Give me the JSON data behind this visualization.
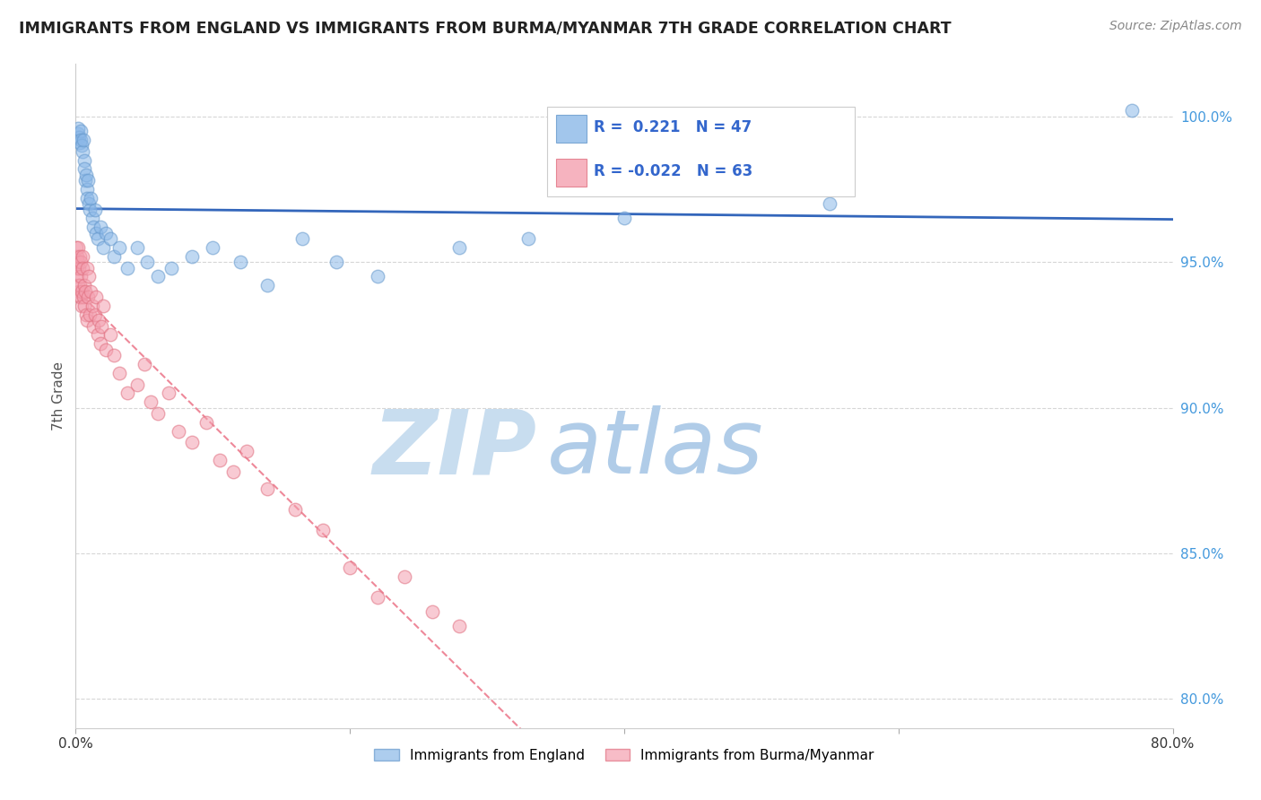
{
  "title": "IMMIGRANTS FROM ENGLAND VS IMMIGRANTS FROM BURMA/MYANMAR 7TH GRADE CORRELATION CHART",
  "source": "Source: ZipAtlas.com",
  "ylabel": "7th Grade",
  "yticks": [
    80.0,
    85.0,
    90.0,
    95.0,
    100.0
  ],
  "ytick_labels": [
    "80.0%",
    "85.0%",
    "90.0%",
    "95.0%",
    "100.0%"
  ],
  "xtick_vals": [
    0.0,
    20.0,
    40.0,
    60.0,
    80.0
  ],
  "xtick_labels": [
    "0.0%",
    "",
    "",
    "",
    "80.0%"
  ],
  "xlim": [
    0.0,
    80.0
  ],
  "ylim": [
    79.0,
    101.8
  ],
  "legend_england": "Immigrants from England",
  "legend_burma": "Immigrants from Burma/Myanmar",
  "R_england": 0.221,
  "N_england": 47,
  "R_burma": -0.022,
  "N_burma": 63,
  "england_color": "#8BB8E8",
  "burma_color": "#F4A0B0",
  "england_edge_color": "#6699CC",
  "burma_edge_color": "#E07080",
  "england_line_color": "#3366BB",
  "burma_line_color": "#EE8899",
  "background_color": "#FFFFFF",
  "watermark_zip": "ZIP",
  "watermark_atlas": "atlas",
  "watermark_color_zip": "#C8DDEF",
  "watermark_color_atlas": "#B0CCE8",
  "england_x": [
    0.15,
    0.2,
    0.25,
    0.3,
    0.35,
    0.4,
    0.45,
    0.5,
    0.55,
    0.6,
    0.65,
    0.7,
    0.75,
    0.8,
    0.85,
    0.9,
    0.95,
    1.0,
    1.1,
    1.2,
    1.3,
    1.4,
    1.5,
    1.6,
    1.8,
    2.0,
    2.2,
    2.5,
    2.8,
    3.2,
    3.8,
    4.5,
    5.2,
    6.0,
    7.0,
    8.5,
    10.0,
    12.0,
    14.0,
    16.5,
    19.0,
    22.0,
    28.0,
    33.0,
    40.0,
    55.0,
    77.0
  ],
  "england_y": [
    99.4,
    99.6,
    99.3,
    99.1,
    99.5,
    99.2,
    99.0,
    98.8,
    99.2,
    98.5,
    98.2,
    97.8,
    98.0,
    97.5,
    97.2,
    97.8,
    97.0,
    96.8,
    97.2,
    96.5,
    96.2,
    96.8,
    96.0,
    95.8,
    96.2,
    95.5,
    96.0,
    95.8,
    95.2,
    95.5,
    94.8,
    95.5,
    95.0,
    94.5,
    94.8,
    95.2,
    95.5,
    95.0,
    94.2,
    95.8,
    95.0,
    94.5,
    95.5,
    95.8,
    96.5,
    97.0,
    100.2
  ],
  "burma_x": [
    0.05,
    0.08,
    0.1,
    0.12,
    0.15,
    0.18,
    0.2,
    0.22,
    0.25,
    0.28,
    0.3,
    0.32,
    0.35,
    0.38,
    0.4,
    0.42,
    0.45,
    0.48,
    0.5,
    0.55,
    0.6,
    0.65,
    0.7,
    0.75,
    0.8,
    0.85,
    0.9,
    0.95,
    1.0,
    1.1,
    1.2,
    1.3,
    1.4,
    1.5,
    1.6,
    1.7,
    1.8,
    1.9,
    2.0,
    2.2,
    2.5,
    2.8,
    3.2,
    3.8,
    4.5,
    5.0,
    5.5,
    6.0,
    6.8,
    7.5,
    8.5,
    9.5,
    10.5,
    11.5,
    12.5,
    14.0,
    16.0,
    18.0,
    20.0,
    22.0,
    24.0,
    26.0,
    28.0
  ],
  "burma_y": [
    95.5,
    94.8,
    95.2,
    94.5,
    95.0,
    94.2,
    95.5,
    94.0,
    94.8,
    93.8,
    95.2,
    94.2,
    93.8,
    95.0,
    94.5,
    93.5,
    94.0,
    95.2,
    94.8,
    93.8,
    94.2,
    93.5,
    94.0,
    93.2,
    94.8,
    93.0,
    93.8,
    94.5,
    93.2,
    94.0,
    93.5,
    92.8,
    93.2,
    93.8,
    92.5,
    93.0,
    92.2,
    92.8,
    93.5,
    92.0,
    92.5,
    91.8,
    91.2,
    90.5,
    90.8,
    91.5,
    90.2,
    89.8,
    90.5,
    89.2,
    88.8,
    89.5,
    88.2,
    87.8,
    88.5,
    87.2,
    86.5,
    85.8,
    84.5,
    83.5,
    84.2,
    83.0,
    82.5
  ]
}
